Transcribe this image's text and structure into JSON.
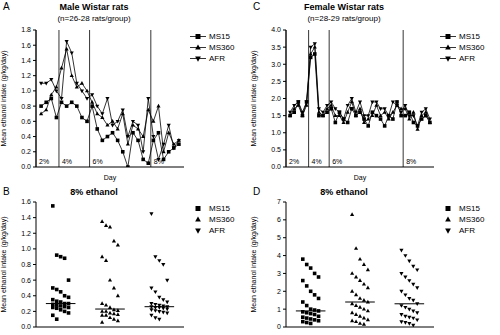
{
  "chart_data": [
    {
      "type": "line",
      "panel_label": "A",
      "title": "Male Wistar rats",
      "subtitle": "(n=26-28 rats/group)",
      "xlabel": "Day",
      "ylabel": "Mean ethanol intake (g/kg/day)",
      "x": [
        1,
        2,
        3,
        4,
        5,
        6,
        7,
        8,
        9,
        10,
        11,
        12,
        13,
        14,
        15,
        16,
        17,
        18,
        19,
        20,
        21,
        22,
        23,
        24,
        25,
        26,
        27,
        28
      ],
      "xlim": [
        0,
        29
      ],
      "ylim": [
        0,
        1.8
      ],
      "yticks": [
        {
          "value": 0,
          "label": "0.0"
        },
        0.2,
        0.4,
        0.6,
        0.8,
        {
          "value": 1,
          "label": "1.0"
        },
        1.2,
        1.4,
        1.6,
        1.8
      ],
      "tick_labels": "y",
      "legend": "right",
      "phases": [
        {
          "label": "2%",
          "start": 0
        },
        {
          "label": "4%",
          "start": 4.5
        },
        {
          "label": "6%",
          "start": 10.5
        },
        {
          "label": "8%",
          "start": 22.5
        }
      ],
      "series": [
        {
          "name": "MS15",
          "color": "#000000",
          "marker": "square",
          "values": [
            0.8,
            0.85,
            0.9,
            0.65,
            0.85,
            0.8,
            0.85,
            0.8,
            0.65,
            0.6,
            0.8,
            0.5,
            0.35,
            0.4,
            0.45,
            0.35,
            0.2,
            0.0,
            0.45,
            0.35,
            0.1,
            0.05,
            0.35,
            0.45,
            0.1,
            0.2,
            0.25,
            0.3
          ]
        },
        {
          "name": "MS360",
          "color": "#000000",
          "marker": "triangle",
          "values": [
            0.7,
            0.75,
            0.95,
            1.05,
            1.3,
            1.55,
            1.2,
            1.05,
            1.1,
            1.0,
            0.85,
            0.7,
            0.65,
            0.55,
            0.6,
            0.5,
            0.7,
            0.3,
            0.55,
            0.5,
            0.4,
            0.75,
            0.6,
            0.8,
            0.2,
            0.45,
            0.3,
            0.35
          ]
        },
        {
          "name": "AFR",
          "color": "#000000",
          "marker": "triangle-down",
          "values": [
            1.1,
            1.1,
            1.15,
            1.0,
            0.9,
            1.65,
            1.5,
            1.1,
            1.0,
            0.9,
            0.95,
            0.8,
            0.7,
            0.9,
            0.55,
            0.6,
            0.75,
            0.4,
            0.6,
            0.55,
            0.2,
            0.9,
            0.4,
            0.1,
            0.3,
            0.55,
            0.25,
            0.35
          ]
        }
      ]
    },
    {
      "type": "scatter",
      "panel_label": "B",
      "title": "8% ethanol",
      "ylabel": "Mean ethanol intake (g/kg/day)",
      "ylim": [
        0,
        1.6
      ],
      "yticks": [
        {
          "value": 0,
          "label": "0.0"
        },
        0.2,
        0.4,
        0.6,
        0.8,
        {
          "value": 1,
          "label": "1.0"
        },
        1.2,
        1.4,
        1.6
      ],
      "tick_labels": "y",
      "legend": "right",
      "series": [
        {
          "name": "MS15",
          "color": "#000000",
          "marker": "square",
          "median": 0.3,
          "values": [
            1.55,
            0.92,
            0.9,
            0.88,
            0.6,
            0.5,
            0.48,
            0.45,
            0.4,
            0.38,
            0.35,
            0.33,
            0.32,
            0.3,
            0.3,
            0.29,
            0.28,
            0.27,
            0.26,
            0.25,
            0.25,
            0.24,
            0.22,
            0.2,
            0.18,
            0.15,
            0.1
          ]
        },
        {
          "name": "MS360",
          "color": "#000000",
          "marker": "triangle",
          "median": 0.23,
          "values": [
            1.35,
            1.3,
            1.28,
            1.1,
            1.05,
            0.9,
            0.85,
            0.6,
            0.5,
            0.4,
            0.3,
            0.28,
            0.25,
            0.22,
            0.21,
            0.2,
            0.2,
            0.18,
            0.17,
            0.16,
            0.15,
            0.15,
            0.12,
            0.1,
            0.08,
            0.06
          ]
        },
        {
          "name": "AFR",
          "color": "#000000",
          "marker": "triangle-down",
          "median": 0.26,
          "values": [
            1.45,
            0.9,
            0.85,
            0.8,
            0.6,
            0.5,
            0.45,
            0.38,
            0.35,
            0.32,
            0.3,
            0.29,
            0.28,
            0.27,
            0.26,
            0.26,
            0.25,
            0.25,
            0.24,
            0.23,
            0.22,
            0.21,
            0.2,
            0.19,
            0.18,
            0.15,
            0.12,
            0.1
          ]
        }
      ]
    },
    {
      "type": "line",
      "panel_label": "C",
      "title": "Female Wistar rats",
      "subtitle": "(n=28-29 rats/group)",
      "xlabel": "Day",
      "ylabel": "Mean ethanol intake (g/kg/day)",
      "x": [
        1,
        2,
        3,
        4,
        5,
        6,
        7,
        8,
        9,
        10,
        11,
        12,
        13,
        14,
        15,
        16,
        17,
        18,
        19,
        20,
        21,
        22,
        23,
        24,
        25,
        26,
        27,
        28,
        29,
        30,
        31,
        32,
        33,
        34,
        35
      ],
      "xlim": [
        0,
        36
      ],
      "ylim": [
        0,
        4
      ],
      "yticks": [
        {
          "value": 0,
          "label": "0.0"
        },
        0.5,
        {
          "value": 1,
          "label": "1.0"
        },
        1.5,
        {
          "value": 2,
          "label": "2.0"
        },
        2.5,
        {
          "value": 3,
          "label": "3.0"
        },
        3.5,
        {
          "value": 4,
          "label": "4.0"
        }
      ],
      "tick_labels": "y",
      "legend": "right",
      "phases": [
        {
          "label": "2%",
          "start": 0
        },
        {
          "label": "4%",
          "start": 5.5
        },
        {
          "label": "6%",
          "start": 10.5
        },
        {
          "label": "8%",
          "start": 28.5
        }
      ],
      "series": [
        {
          "name": "MS15",
          "color": "#000000",
          "marker": "square",
          "values": [
            1.5,
            1.6,
            1.9,
            1.5,
            1.9,
            3.2,
            3.3,
            1.5,
            1.5,
            1.6,
            1.7,
            1.3,
            1.6,
            1.4,
            1.3,
            1.7,
            1.5,
            1.6,
            1.4,
            1.2,
            1.6,
            1.5,
            1.4,
            1.2,
            1.5,
            1.4,
            1.9,
            1.5,
            1.5,
            1.6,
            1.3,
            1.2,
            1.4,
            1.5,
            1.3
          ]
        },
        {
          "name": "MS360",
          "color": "#000000",
          "marker": "triangle",
          "values": [
            1.5,
            1.7,
            1.8,
            1.5,
            1.8,
            3.3,
            3.5,
            1.6,
            1.5,
            1.7,
            1.8,
            1.5,
            1.5,
            1.3,
            1.6,
            1.9,
            1.5,
            1.7,
            1.3,
            1.4,
            1.5,
            1.8,
            1.5,
            1.6,
            1.4,
            1.6,
            1.8,
            1.7,
            1.7,
            1.4,
            1.6,
            1.1,
            1.5,
            1.6,
            1.3
          ]
        },
        {
          "name": "AFR",
          "color": "#000000",
          "marker": "triangle-down",
          "values": [
            1.6,
            1.8,
            1.9,
            1.6,
            1.9,
            3.5,
            3.6,
            1.7,
            1.6,
            1.8,
            1.9,
            1.7,
            1.6,
            1.4,
            1.8,
            2.0,
            1.6,
            1.9,
            1.5,
            1.5,
            1.9,
            1.9,
            1.7,
            1.7,
            1.5,
            1.9,
            1.8,
            1.6,
            1.8,
            1.5,
            1.5,
            1.2,
            1.6,
            1.7,
            1.4
          ]
        }
      ]
    },
    {
      "type": "scatter",
      "panel_label": "D",
      "title": "8% ethanol",
      "ylabel": "Mean ethanol intake (g/kg/day)",
      "ylim": [
        0,
        7
      ],
      "yticks": [
        0,
        1,
        2,
        3,
        4,
        5,
        6,
        7
      ],
      "tick_labels": "y",
      "legend": "right",
      "series": [
        {
          "name": "MS15",
          "color": "#000000",
          "marker": "square",
          "median": 0.9,
          "values": [
            3.8,
            3.5,
            3.3,
            3.0,
            2.8,
            2.6,
            2.3,
            2.0,
            1.8,
            1.6,
            1.4,
            1.2,
            1.0,
            0.95,
            0.9,
            0.85,
            0.8,
            0.75,
            0.7,
            0.6,
            0.55,
            0.5,
            0.45,
            0.4,
            0.35,
            0.3,
            0.25,
            0.2
          ]
        },
        {
          "name": "MS360",
          "color": "#000000",
          "marker": "triangle",
          "median": 1.4,
          "values": [
            6.3,
            4.4,
            3.8,
            3.5,
            3.2,
            3.0,
            2.8,
            2.6,
            2.4,
            2.2,
            2.0,
            1.8,
            1.6,
            1.5,
            1.4,
            1.3,
            1.2,
            1.1,
            1.0,
            0.9,
            0.8,
            0.7,
            0.6,
            0.5,
            0.4,
            0.35,
            0.3,
            0.2,
            0.15
          ]
        },
        {
          "name": "AFR",
          "color": "#000000",
          "marker": "triangle-down",
          "median": 1.3,
          "values": [
            4.3,
            4.0,
            3.7,
            3.4,
            3.2,
            3.0,
            2.8,
            2.6,
            2.4,
            2.2,
            2.0,
            1.8,
            1.6,
            1.5,
            1.3,
            1.2,
            1.1,
            1.0,
            0.9,
            0.8,
            0.7,
            0.6,
            0.55,
            0.5,
            0.4,
            0.3,
            0.25,
            0.2,
            0.1
          ]
        }
      ]
    }
  ]
}
